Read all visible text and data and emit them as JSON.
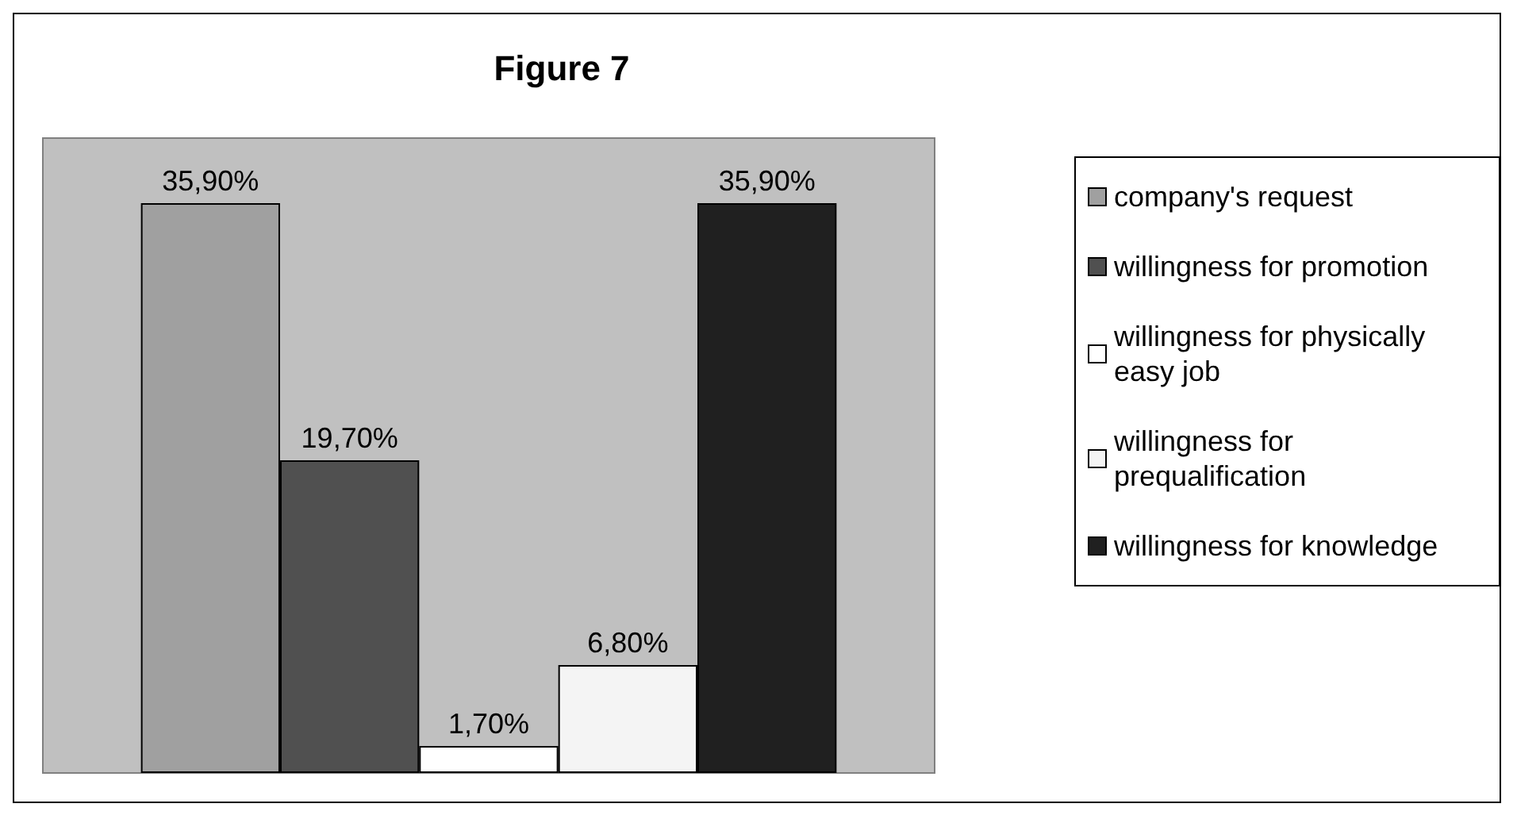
{
  "chart_data": {
    "type": "bar",
    "title": "Figure 7",
    "categories": [
      null
    ],
    "series": [
      {
        "name": "company's request",
        "color": "#a0a0a0",
        "values": [
          35.9
        ],
        "value_labels": [
          "35,90%"
        ]
      },
      {
        "name": "willingness for promotion",
        "color": "#505050",
        "values": [
          19.7
        ],
        "value_labels": [
          "19,70%"
        ]
      },
      {
        "name": "willingness for physically easy job",
        "color": "#ffffff",
        "values": [
          1.7
        ],
        "value_labels": [
          "1,70%"
        ]
      },
      {
        "name": "willingness for prequalification",
        "color": "#f4f4f4",
        "values": [
          6.8
        ],
        "value_labels": [
          "6,80%"
        ]
      },
      {
        "name": "willingness for knowledge",
        "color": "#202020",
        "values": [
          35.9
        ],
        "value_labels": [
          "35,90%"
        ]
      }
    ],
    "legend": "right"
  }
}
